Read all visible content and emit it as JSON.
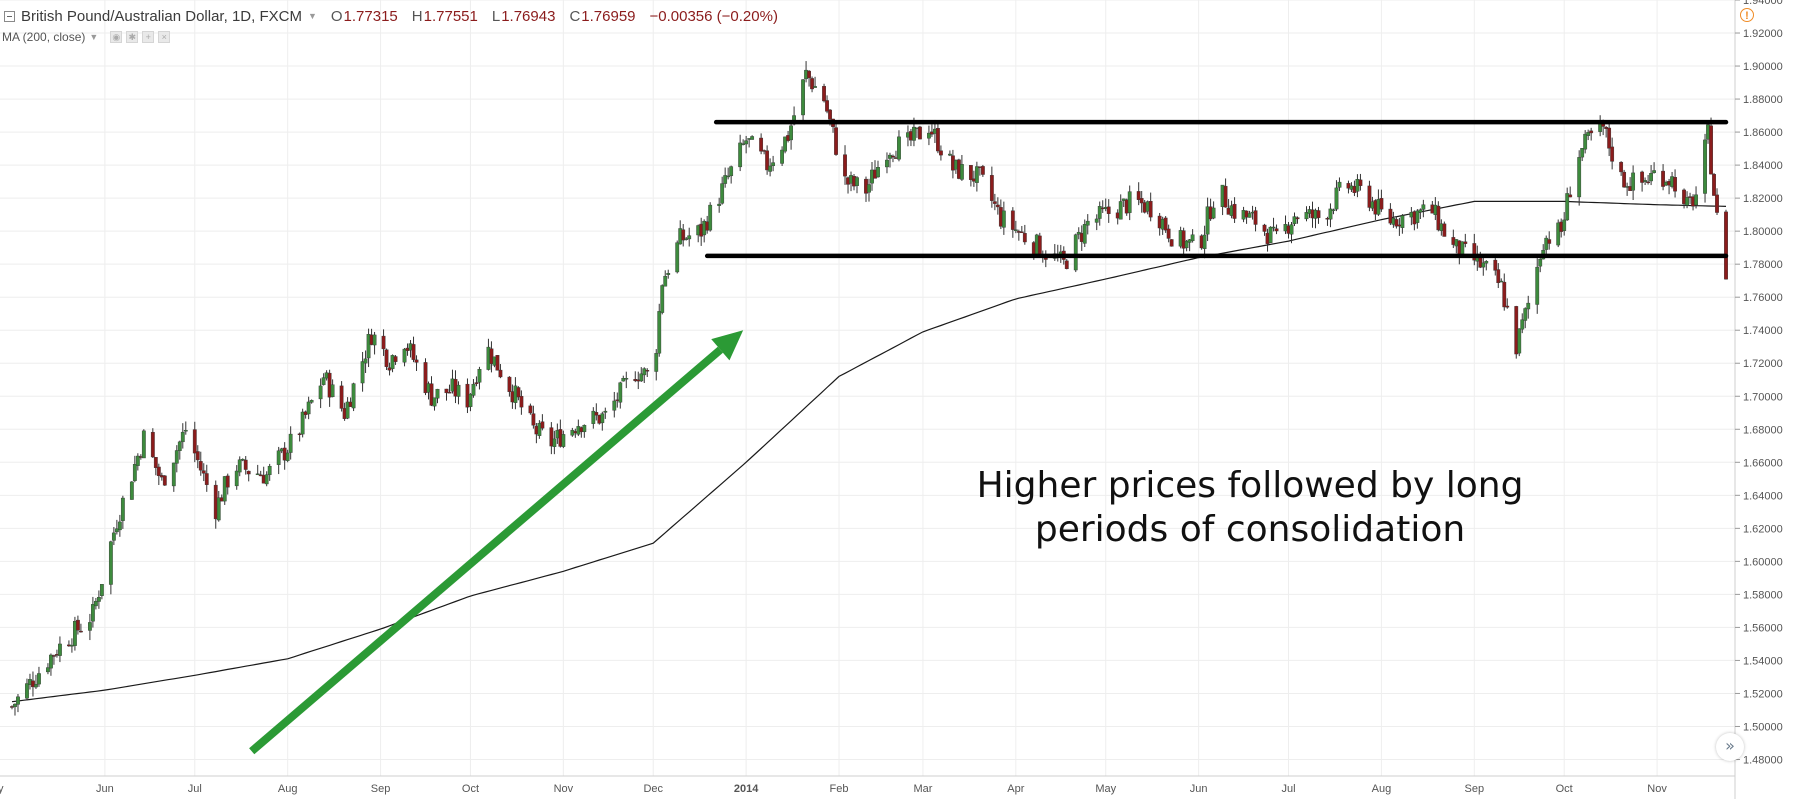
{
  "header": {
    "symbol": "British Pound/Australian Dollar, 1D, FXCM",
    "open_label": "O",
    "open": "1.77315",
    "high_label": "H",
    "high": "1.77551",
    "low_label": "L",
    "low": "1.76943",
    "close_label": "C",
    "close": "1.76959",
    "change": "−0.00356 (−0.20%)"
  },
  "indicator": {
    "label": "MA (200, close)"
  },
  "annotation": {
    "line1": "Higher prices followed by long",
    "line2": "periods of consolidation"
  },
  "colors": {
    "up": "#3d8b3d",
    "down": "#8b1c1c",
    "arrow": "#2b9a35",
    "levels": "#000000",
    "ma": "#1a1a1a",
    "grid": "#eeeeee"
  },
  "icons": {
    "alert": "alert-circle-icon",
    "scroll": "scroll-right-icon",
    "collapse": "collapse-icon"
  },
  "chart_data": {
    "type": "candlestick",
    "instrument": "GBP/AUD",
    "timeframe": "1D",
    "y_axis": {
      "min": 1.47,
      "max": 1.94,
      "ticks": [
        "1.48000",
        "1.50000",
        "1.52000",
        "1.54000",
        "1.56000",
        "1.58000",
        "1.60000",
        "1.62000",
        "1.64000",
        "1.66000",
        "1.68000",
        "1.70000",
        "1.72000",
        "1.74000",
        "1.76000",
        "1.78000",
        "1.80000",
        "1.82000",
        "1.84000",
        "1.86000",
        "1.88000",
        "1.90000",
        "1.92000",
        "1.94000"
      ]
    },
    "x_axis": {
      "start_label": "y",
      "labels": [
        "Jun",
        "Jul",
        "Aug",
        "Sep",
        "Oct",
        "Nov",
        "Dec",
        "2014",
        "Feb",
        "Mar",
        "Apr",
        "May",
        "Jun",
        "Jul",
        "Aug",
        "Sep",
        "Oct",
        "Nov"
      ],
      "label_dates": [
        "2013-06-01",
        "2013-07-01",
        "2013-08-01",
        "2013-09-01",
        "2013-10-01",
        "2013-11-01",
        "2013-12-01",
        "2014-01-01",
        "2014-02-01",
        "2014-03-01",
        "2014-04-01",
        "2014-05-01",
        "2014-06-01",
        "2014-07-01",
        "2014-08-01",
        "2014-09-01",
        "2014-10-01",
        "2014-11-01"
      ],
      "range": [
        "2013-05-01",
        "2014-11-24"
      ]
    },
    "price_path": [
      [
        "2013-05-01",
        1.512
      ],
      [
        "2013-05-15",
        1.545
      ],
      [
        "2013-05-28",
        1.568
      ],
      [
        "2013-06-05",
        1.625
      ],
      [
        "2013-06-14",
        1.675
      ],
      [
        "2013-06-20",
        1.648
      ],
      [
        "2013-06-28",
        1.68
      ],
      [
        "2013-07-08",
        1.632
      ],
      [
        "2013-07-14",
        1.658
      ],
      [
        "2013-07-25",
        1.652
      ],
      [
        "2013-08-04",
        1.676
      ],
      [
        "2013-08-13",
        1.712
      ],
      [
        "2013-08-20",
        1.69
      ],
      [
        "2013-08-29",
        1.738
      ],
      [
        "2013-09-04",
        1.722
      ],
      [
        "2013-09-09",
        1.734
      ],
      [
        "2013-09-18",
        1.7
      ],
      [
        "2013-09-25",
        1.704
      ],
      [
        "2013-09-30",
        1.698
      ],
      [
        "2013-10-06",
        1.731
      ],
      [
        "2013-10-16",
        1.7
      ],
      [
        "2013-10-22",
        1.68
      ],
      [
        "2013-10-28",
        1.672
      ],
      [
        "2013-11-06",
        1.684
      ],
      [
        "2013-11-15",
        1.688
      ],
      [
        "2013-11-25",
        1.715
      ],
      [
        "2013-12-01",
        1.712
      ],
      [
        "2013-12-04",
        1.77
      ],
      [
        "2013-12-10",
        1.795
      ],
      [
        "2013-12-17",
        1.8
      ],
      [
        "2013-12-24",
        1.825
      ],
      [
        "2014-01-01",
        1.855
      ],
      [
        "2014-01-08",
        1.84
      ],
      [
        "2014-01-15",
        1.858
      ],
      [
        "2014-01-21",
        1.895
      ],
      [
        "2014-01-27",
        1.88
      ],
      [
        "2014-02-03",
        1.83
      ],
      [
        "2014-02-10",
        1.825
      ],
      [
        "2014-02-17",
        1.85
      ],
      [
        "2014-02-24",
        1.853
      ],
      [
        "2014-03-03",
        1.864
      ],
      [
        "2014-03-11",
        1.838
      ],
      [
        "2014-03-20",
        1.832
      ],
      [
        "2014-03-27",
        1.808
      ],
      [
        "2014-04-03",
        1.798
      ],
      [
        "2014-04-11",
        1.787
      ],
      [
        "2014-04-17",
        1.78
      ],
      [
        "2014-04-25",
        1.805
      ],
      [
        "2014-05-03",
        1.812
      ],
      [
        "2014-05-10",
        1.818
      ],
      [
        "2014-05-17",
        1.814
      ],
      [
        "2014-05-24",
        1.795
      ],
      [
        "2014-06-01",
        1.79
      ],
      [
        "2014-06-07",
        1.826
      ],
      [
        "2014-06-13",
        1.812
      ],
      [
        "2014-06-20",
        1.806
      ],
      [
        "2014-06-27",
        1.794
      ],
      [
        "2014-07-03",
        1.81
      ],
      [
        "2014-07-12",
        1.808
      ],
      [
        "2014-07-20",
        1.828
      ],
      [
        "2014-07-27",
        1.822
      ],
      [
        "2014-08-03",
        1.806
      ],
      [
        "2014-08-10",
        1.81
      ],
      [
        "2014-08-18",
        1.812
      ],
      [
        "2014-08-25",
        1.79
      ],
      [
        "2014-08-31",
        1.784
      ],
      [
        "2014-09-06",
        1.775
      ],
      [
        "2014-09-10",
        1.766
      ],
      [
        "2014-09-15",
        1.73
      ],
      [
        "2014-09-20",
        1.762
      ],
      [
        "2014-09-24",
        1.795
      ],
      [
        "2014-09-30",
        1.8
      ],
      [
        "2014-10-05",
        1.844
      ],
      [
        "2014-10-10",
        1.857
      ],
      [
        "2014-10-14",
        1.862
      ],
      [
        "2014-10-20",
        1.832
      ],
      [
        "2014-10-26",
        1.828
      ],
      [
        "2014-11-01",
        1.836
      ],
      [
        "2014-11-07",
        1.83
      ],
      [
        "2014-11-10",
        1.812
      ],
      [
        "2014-11-14",
        1.822
      ],
      [
        "2014-11-18",
        1.858
      ],
      [
        "2014-11-22",
        1.79
      ],
      [
        "2014-11-24",
        1.775
      ]
    ],
    "ma_200_path": [
      [
        "2013-05-01",
        1.515
      ],
      [
        "2013-06-01",
        1.522
      ],
      [
        "2013-07-01",
        1.531
      ],
      [
        "2013-08-01",
        1.541
      ],
      [
        "2013-09-01",
        1.559
      ],
      [
        "2013-10-01",
        1.579
      ],
      [
        "2013-11-01",
        1.594
      ],
      [
        "2013-12-01",
        1.611
      ],
      [
        "2014-01-01",
        1.66
      ],
      [
        "2014-02-01",
        1.712
      ],
      [
        "2014-03-01",
        1.739
      ],
      [
        "2014-04-01",
        1.759
      ],
      [
        "2014-05-01",
        1.771
      ],
      [
        "2014-06-01",
        1.784
      ],
      [
        "2014-07-01",
        1.794
      ],
      [
        "2014-08-01",
        1.807
      ],
      [
        "2014-09-01",
        1.818
      ],
      [
        "2014-10-01",
        1.818
      ],
      [
        "2014-11-01",
        1.816
      ],
      [
        "2014-11-24",
        1.815
      ]
    ],
    "resistance": {
      "price": 1.866,
      "from": "2013-12-22",
      "to": "2014-11-24"
    },
    "support": {
      "price": 1.785,
      "from": "2013-12-19",
      "to": "2014-11-24"
    },
    "trend_arrow": {
      "from": [
        "2013-07-20",
        1.485
      ],
      "to": [
        "2013-12-31",
        1.74
      ]
    },
    "grid": true
  }
}
